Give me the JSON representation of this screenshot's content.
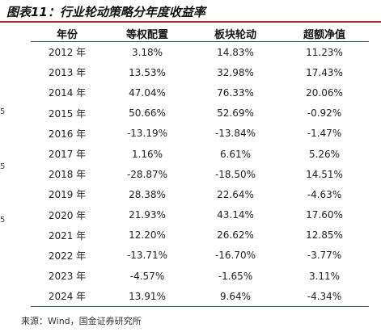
{
  "title": "图表11：行业轮动策略分年度收益率",
  "table": {
    "headers": [
      "年份",
      "等权配置",
      "板块轮动",
      "超额净值"
    ],
    "rows": [
      [
        "2012 年",
        "3.18%",
        "14.83%",
        "11.23%"
      ],
      [
        "2013 年",
        "13.53%",
        "32.98%",
        "17.43%"
      ],
      [
        "2014 年",
        "47.04%",
        "76.33%",
        "20.06%"
      ],
      [
        "2015 年",
        "50.66%",
        "52.69%",
        "-0.92%"
      ],
      [
        "2016 年",
        "-13.19%",
        "-13.84%",
        "-1.47%"
      ],
      [
        "2017 年",
        "1.16%",
        "6.61%",
        "5.26%"
      ],
      [
        "2018 年",
        "-28.87%",
        "-18.50%",
        "14.51%"
      ],
      [
        "2019 年",
        "28.38%",
        "22.64%",
        "-4.63%"
      ],
      [
        "2020 年",
        "21.93%",
        "43.14%",
        "17.60%"
      ],
      [
        "2021 年",
        "12.20%",
        "26.62%",
        "12.85%"
      ],
      [
        "2022 年",
        "-13.71%",
        "-16.70%",
        "-3.77%"
      ],
      [
        "2023 年",
        "-4.57%",
        "-1.65%",
        "3.11%"
      ],
      [
        "2024 年",
        "13.91%",
        "9.64%",
        "-4.34%"
      ]
    ]
  },
  "left_marks": [
    "5",
    "5",
    "5"
  ],
  "source": "来源：Wind，国金证券研究所",
  "colors": {
    "rule": "#9b2c2c"
  }
}
